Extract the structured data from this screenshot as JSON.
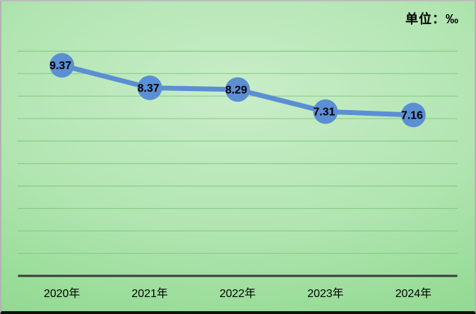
{
  "unit_label": "单位：‰",
  "colors": {
    "series": "#5B8FD4",
    "grid": "#7CC67C",
    "axis": "#3B3B3B",
    "text": "#000000"
  },
  "chart_data": {
    "type": "line",
    "title": "",
    "unit": "单位：‰",
    "categories": [
      "2020年",
      "2021年",
      "2022年",
      "2023年",
      "2024年"
    ],
    "values": [
      9.37,
      8.37,
      8.29,
      7.31,
      7.16
    ],
    "data_labels": [
      "9.37",
      "8.37",
      "8.29",
      "7.31",
      "7.16"
    ],
    "xlabel": "",
    "ylabel": "",
    "ylim": [
      0,
      10
    ],
    "gridline_step": 1,
    "grid": true,
    "legend": "none",
    "marker": "circle"
  }
}
